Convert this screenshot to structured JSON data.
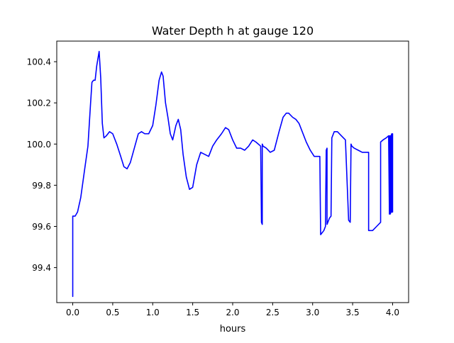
{
  "chart_data": {
    "type": "line",
    "title": "Water Depth h at gauge 120",
    "xlabel": "hours",
    "ylabel": "",
    "xlim": [
      -0.2,
      4.2
    ],
    "ylim": [
      99.23,
      100.5
    ],
    "xticks": [
      0.0,
      0.5,
      1.0,
      1.5,
      2.0,
      2.5,
      3.0,
      3.5,
      4.0
    ],
    "xtick_labels": [
      "0.0",
      "0.5",
      "1.0",
      "1.5",
      "2.0",
      "2.5",
      "3.0",
      "3.5",
      "4.0"
    ],
    "yticks": [
      99.4,
      99.6,
      99.8,
      100.0,
      100.2,
      100.4
    ],
    "ytick_labels": [
      "99.4",
      "99.6",
      "99.8",
      "100.0",
      "100.2",
      "100.4"
    ],
    "grid": false,
    "legend": "none",
    "series": [
      {
        "color": "#0000ff",
        "x": [
          0.0,
          0.0,
          0.0,
          0.03,
          0.06,
          0.1,
          0.15,
          0.19,
          0.22,
          0.24,
          0.26,
          0.28,
          0.3,
          0.33,
          0.35,
          0.37,
          0.39,
          0.42,
          0.46,
          0.5,
          0.55,
          0.6,
          0.64,
          0.68,
          0.72,
          0.77,
          0.82,
          0.86,
          0.9,
          0.95,
          1.0,
          1.04,
          1.08,
          1.11,
          1.13,
          1.16,
          1.19,
          1.22,
          1.25,
          1.29,
          1.32,
          1.35,
          1.38,
          1.42,
          1.46,
          1.5,
          1.55,
          1.6,
          1.65,
          1.7,
          1.75,
          1.8,
          1.86,
          1.91,
          1.95,
          2.0,
          2.05,
          2.1,
          2.15,
          2.2,
          2.25,
          2.29,
          2.32,
          2.35,
          2.36,
          2.37,
          2.37,
          2.38,
          2.42,
          2.47,
          2.52,
          2.58,
          2.63,
          2.67,
          2.7,
          2.75,
          2.79,
          2.83,
          2.87,
          2.92,
          2.97,
          3.02,
          3.06,
          3.09,
          3.1,
          3.1,
          3.14,
          3.16,
          3.17,
          3.18,
          3.18,
          3.19,
          3.21,
          3.23,
          3.24,
          3.24,
          3.27,
          3.31,
          3.36,
          3.41,
          3.45,
          3.47,
          3.48,
          3.48,
          3.49,
          3.49,
          3.52,
          3.57,
          3.62,
          3.66,
          3.7,
          3.7,
          3.75,
          3.8,
          3.85,
          3.85,
          3.88,
          3.92,
          3.95,
          3.96,
          3.96,
          3.97,
          3.97,
          3.98,
          3.98,
          3.99,
          3.99,
          4.0,
          4.0
        ],
        "y": [
          99.26,
          99.65,
          99.65,
          99.65,
          99.67,
          99.74,
          99.88,
          99.99,
          100.18,
          100.3,
          100.31,
          100.31,
          100.38,
          100.45,
          100.32,
          100.1,
          100.03,
          100.04,
          100.06,
          100.05,
          100.0,
          99.94,
          99.89,
          99.88,
          99.91,
          99.98,
          100.05,
          100.06,
          100.05,
          100.05,
          100.09,
          100.19,
          100.31,
          100.35,
          100.33,
          100.2,
          100.13,
          100.05,
          100.02,
          100.09,
          100.12,
          100.07,
          99.95,
          99.84,
          99.78,
          99.79,
          99.9,
          99.96,
          99.95,
          99.94,
          99.99,
          100.02,
          100.05,
          100.08,
          100.07,
          100.02,
          99.98,
          99.98,
          99.97,
          99.99,
          100.02,
          100.01,
          100.0,
          99.99,
          99.62,
          99.61,
          100.0,
          99.99,
          99.98,
          99.96,
          99.97,
          100.06,
          100.13,
          100.15,
          100.15,
          100.13,
          100.12,
          100.1,
          100.06,
          100.01,
          99.97,
          99.94,
          99.94,
          99.94,
          99.56,
          99.56,
          99.58,
          99.6,
          99.97,
          99.98,
          99.61,
          99.62,
          99.64,
          99.65,
          100.03,
          100.03,
          100.06,
          100.06,
          100.04,
          100.02,
          99.63,
          99.62,
          100.0,
          100.0,
          99.99,
          99.99,
          99.98,
          99.97,
          99.96,
          99.96,
          99.96,
          99.58,
          99.58,
          99.6,
          99.62,
          100.01,
          100.02,
          100.03,
          100.04,
          99.66,
          100.04,
          100.04,
          99.66,
          99.67,
          100.04,
          100.05,
          99.67,
          99.67,
          100.05
        ]
      }
    ]
  }
}
